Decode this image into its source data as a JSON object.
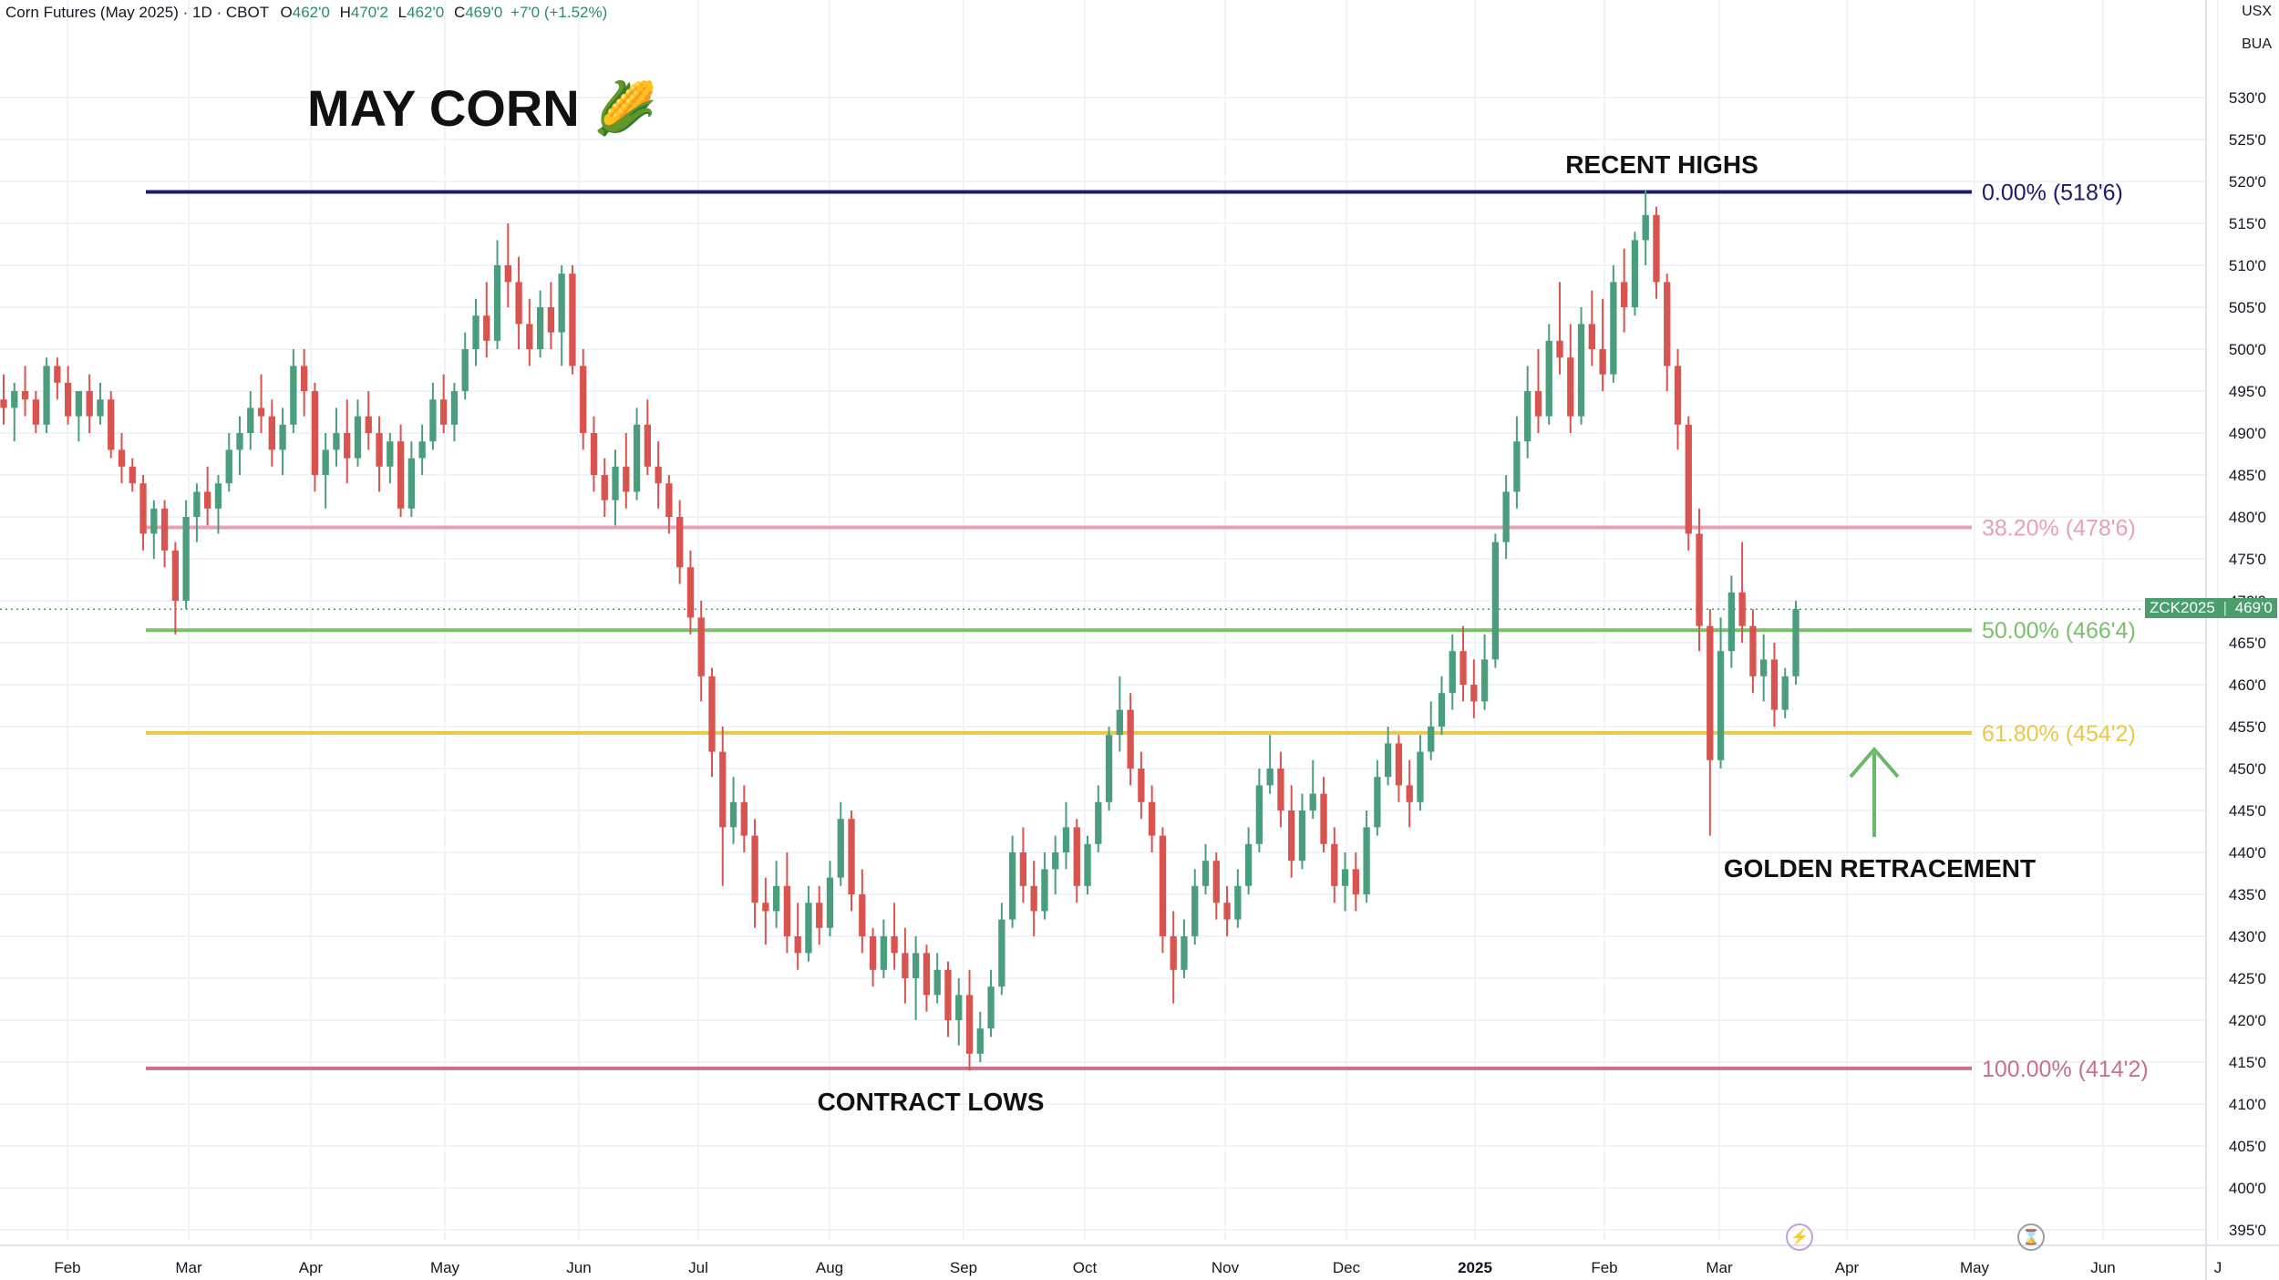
{
  "header": {
    "instrument": "Corn Futures (May 2025) · 1D · CBOT",
    "open_label": "O",
    "open": "462'0",
    "high_label": "H",
    "high": "470'2",
    "low_label": "L",
    "low": "462'0",
    "close_label": "C",
    "close": "469'0",
    "change": "+7'0 (+1.52%)"
  },
  "currency": {
    "line1": "USX",
    "line2": "BUA"
  },
  "price_tag": {
    "symbol": "ZCK2025",
    "value": "469'0"
  },
  "icons": {
    "lightning": "lightning-icon",
    "hourglass": "hourglass-icon"
  },
  "colors": {
    "up": "#4a9e7e",
    "down": "#d9534f",
    "fib_0": "#1f1a6b",
    "fib_382": "#e8a0b4",
    "fib_50": "#7bbf6a",
    "fib_618": "#e8c84a",
    "fib_100": "#c9708c",
    "arrow": "#6ab86a"
  },
  "chart_data": {
    "type": "candlestick",
    "title": "MAY CORN 🌽",
    "ylim": [
      393,
      536
    ],
    "y_ticks": [
      395,
      400,
      405,
      410,
      415,
      420,
      425,
      430,
      435,
      440,
      445,
      450,
      455,
      460,
      465,
      470,
      475,
      480,
      485,
      490,
      495,
      500,
      505,
      510,
      515,
      520,
      525,
      530
    ],
    "y_tick_labels": [
      "395'0",
      "400'0",
      "405'0",
      "410'0",
      "415'0",
      "420'0",
      "425'0",
      "430'0",
      "435'0",
      "440'0",
      "445'0",
      "450'0",
      "455'0",
      "460'0",
      "465'0",
      "470'0",
      "475'0",
      "480'0",
      "485'0",
      "490'0",
      "495'0",
      "500'0",
      "505'0",
      "510'0",
      "515'0",
      "520'0",
      "525'0",
      "530'0"
    ],
    "x_labels": [
      {
        "label": "Feb",
        "bold": false
      },
      {
        "label": "Mar",
        "bold": false
      },
      {
        "label": "Apr",
        "bold": false
      },
      {
        "label": "May",
        "bold": false
      },
      {
        "label": "Jun",
        "bold": false
      },
      {
        "label": "Jul",
        "bold": false
      },
      {
        "label": "Aug",
        "bold": false
      },
      {
        "label": "Sep",
        "bold": false
      },
      {
        "label": "Oct",
        "bold": false
      },
      {
        "label": "Nov",
        "bold": false
      },
      {
        "label": "Dec",
        "bold": false
      },
      {
        "label": "2025",
        "bold": true
      },
      {
        "label": "Feb",
        "bold": false
      },
      {
        "label": "Mar",
        "bold": false
      },
      {
        "label": "Apr",
        "bold": false
      },
      {
        "label": "May",
        "bold": false
      },
      {
        "label": "Jun",
        "bold": false
      },
      {
        "label": "J",
        "bold": false
      }
    ],
    "fib_levels": [
      {
        "level": "0.00%",
        "price": 518.75,
        "label": "0.00% (518'6)"
      },
      {
        "level": "38.20%",
        "price": 478.75,
        "label": "38.20% (478'6)"
      },
      {
        "level": "50.00%",
        "price": 466.5,
        "label": "50.00% (466'4)"
      },
      {
        "level": "61.80%",
        "price": 454.25,
        "label": "61.80% (454'2)"
      },
      {
        "level": "100.00%",
        "price": 414.25,
        "label": "100.00% (414'2)"
      }
    ],
    "annotations": [
      "RECENT HIGHS",
      "CONTRACT LOWS",
      "GOLDEN RETRACEMENT"
    ],
    "last_price": 469.0,
    "candles": [
      [
        494,
        497,
        491,
        493
      ],
      [
        493,
        496,
        489,
        495
      ],
      [
        495,
        498,
        492,
        494
      ],
      [
        494,
        495,
        490,
        491
      ],
      [
        491,
        499,
        490,
        498
      ],
      [
        498,
        499,
        494,
        496
      ],
      [
        496,
        498,
        491,
        492
      ],
      [
        492,
        494,
        489,
        495
      ],
      [
        495,
        497,
        490,
        492
      ],
      [
        492,
        496,
        491,
        494
      ],
      [
        494,
        495,
        487,
        488
      ],
      [
        488,
        490,
        484,
        486
      ],
      [
        486,
        487,
        483,
        484
      ],
      [
        484,
        485,
        476,
        478
      ],
      [
        478,
        482,
        475,
        481
      ],
      [
        481,
        482,
        474,
        476
      ],
      [
        476,
        477,
        466,
        470
      ],
      [
        470,
        482,
        469,
        480
      ],
      [
        480,
        484,
        477,
        483
      ],
      [
        483,
        486,
        479,
        481
      ],
      [
        481,
        485,
        478,
        484
      ],
      [
        484,
        490,
        483,
        488
      ],
      [
        488,
        492,
        485,
        490
      ],
      [
        490,
        495,
        488,
        493
      ],
      [
        493,
        497,
        490,
        492
      ],
      [
        492,
        494,
        486,
        488
      ],
      [
        488,
        493,
        485,
        491
      ],
      [
        491,
        500,
        490,
        498
      ],
      [
        498,
        500,
        492,
        495
      ],
      [
        495,
        496,
        483,
        485
      ],
      [
        485,
        490,
        481,
        488
      ],
      [
        488,
        493,
        486,
        490
      ],
      [
        490,
        494,
        484,
        487
      ],
      [
        487,
        494,
        486,
        492
      ],
      [
        492,
        495,
        488,
        490
      ],
      [
        490,
        492,
        483,
        486
      ],
      [
        486,
        490,
        484,
        489
      ],
      [
        489,
        491,
        480,
        481
      ],
      [
        481,
        489,
        480,
        487
      ],
      [
        487,
        491,
        485,
        489
      ],
      [
        489,
        496,
        488,
        494
      ],
      [
        494,
        497,
        490,
        491
      ],
      [
        491,
        496,
        489,
        495
      ],
      [
        495,
        502,
        494,
        500
      ],
      [
        500,
        506,
        498,
        504
      ],
      [
        504,
        508,
        499,
        501
      ],
      [
        501,
        513,
        500,
        510
      ],
      [
        510,
        515,
        505,
        508
      ],
      [
        508,
        511,
        500,
        503
      ],
      [
        503,
        506,
        498,
        500
      ],
      [
        500,
        507,
        499,
        505
      ],
      [
        505,
        508,
        500,
        502
      ],
      [
        502,
        510,
        498,
        509
      ],
      [
        509,
        510,
        497,
        498
      ],
      [
        498,
        500,
        488,
        490
      ],
      [
        490,
        492,
        483,
        485
      ],
      [
        485,
        487,
        480,
        482
      ],
      [
        482,
        488,
        479,
        486
      ],
      [
        486,
        490,
        481,
        483
      ],
      [
        483,
        493,
        482,
        491
      ],
      [
        491,
        494,
        485,
        486
      ],
      [
        486,
        489,
        481,
        484
      ],
      [
        484,
        485,
        478,
        480
      ],
      [
        480,
        482,
        472,
        474
      ],
      [
        474,
        476,
        466,
        468
      ],
      [
        468,
        470,
        458,
        461
      ],
      [
        461,
        462,
        449,
        452
      ],
      [
        452,
        455,
        436,
        443
      ],
      [
        443,
        449,
        441,
        446
      ],
      [
        446,
        448,
        440,
        442
      ],
      [
        442,
        444,
        431,
        434
      ],
      [
        434,
        437,
        429,
        433
      ],
      [
        433,
        439,
        431,
        436
      ],
      [
        436,
        440,
        428,
        430
      ],
      [
        430,
        434,
        426,
        428
      ],
      [
        428,
        436,
        427,
        434
      ],
      [
        434,
        436,
        429,
        431
      ],
      [
        431,
        439,
        430,
        437
      ],
      [
        437,
        446,
        436,
        444
      ],
      [
        444,
        445,
        433,
        435
      ],
      [
        435,
        438,
        428,
        430
      ],
      [
        430,
        431,
        424,
        426
      ],
      [
        426,
        432,
        425,
        430
      ],
      [
        430,
        434,
        426,
        428
      ],
      [
        428,
        431,
        422,
        425
      ],
      [
        425,
        430,
        420,
        428
      ],
      [
        428,
        429,
        421,
        423
      ],
      [
        423,
        428,
        422,
        426
      ],
      [
        426,
        427,
        418,
        420
      ],
      [
        420,
        425,
        417,
        423
      ],
      [
        423,
        426,
        414,
        416
      ],
      [
        416,
        421,
        415,
        419
      ],
      [
        419,
        426,
        418,
        424
      ],
      [
        424,
        434,
        423,
        432
      ],
      [
        432,
        442,
        431,
        440
      ],
      [
        440,
        443,
        434,
        436
      ],
      [
        436,
        439,
        430,
        433
      ],
      [
        433,
        440,
        432,
        438
      ],
      [
        438,
        442,
        435,
        440
      ],
      [
        440,
        446,
        438,
        443
      ],
      [
        443,
        444,
        434,
        436
      ],
      [
        436,
        442,
        435,
        441
      ],
      [
        441,
        448,
        440,
        446
      ],
      [
        446,
        455,
        445,
        454
      ],
      [
        454,
        461,
        452,
        457
      ],
      [
        457,
        459,
        448,
        450
      ],
      [
        450,
        452,
        444,
        446
      ],
      [
        446,
        448,
        440,
        442
      ],
      [
        442,
        443,
        428,
        430
      ],
      [
        430,
        433,
        422,
        426
      ],
      [
        426,
        432,
        425,
        430
      ],
      [
        430,
        438,
        429,
        436
      ],
      [
        436,
        441,
        435,
        439
      ],
      [
        439,
        440,
        432,
        434
      ],
      [
        434,
        436,
        430,
        432
      ],
      [
        432,
        438,
        431,
        436
      ],
      [
        436,
        443,
        435,
        441
      ],
      [
        441,
        450,
        440,
        448
      ],
      [
        448,
        454,
        447,
        450
      ],
      [
        450,
        452,
        443,
        445
      ],
      [
        445,
        448,
        437,
        439
      ],
      [
        439,
        447,
        438,
        445
      ],
      [
        445,
        451,
        444,
        447
      ],
      [
        447,
        449,
        440,
        441
      ],
      [
        441,
        443,
        434,
        436
      ],
      [
        436,
        440,
        433,
        438
      ],
      [
        438,
        440,
        433,
        435
      ],
      [
        435,
        445,
        434,
        443
      ],
      [
        443,
        451,
        442,
        449
      ],
      [
        449,
        455,
        448,
        453
      ],
      [
        453,
        454,
        446,
        448
      ],
      [
        448,
        451,
        443,
        446
      ],
      [
        446,
        454,
        445,
        452
      ],
      [
        452,
        458,
        451,
        455
      ],
      [
        455,
        461,
        454,
        459
      ],
      [
        459,
        466,
        457,
        464
      ],
      [
        464,
        467,
        458,
        460
      ],
      [
        460,
        463,
        456,
        458
      ],
      [
        458,
        466,
        457,
        463
      ],
      [
        463,
        478,
        462,
        477
      ],
      [
        477,
        485,
        475,
        483
      ],
      [
        483,
        492,
        481,
        489
      ],
      [
        489,
        498,
        487,
        495
      ],
      [
        495,
        500,
        490,
        492
      ],
      [
        492,
        503,
        491,
        501
      ],
      [
        501,
        508,
        497,
        499
      ],
      [
        499,
        503,
        490,
        492
      ],
      [
        492,
        505,
        491,
        503
      ],
      [
        503,
        507,
        498,
        500
      ],
      [
        500,
        506,
        495,
        497
      ],
      [
        497,
        510,
        496,
        508
      ],
      [
        508,
        512,
        502,
        505
      ],
      [
        505,
        514,
        504,
        513
      ],
      [
        513,
        519,
        510,
        516
      ],
      [
        516,
        517,
        506,
        508
      ],
      [
        508,
        509,
        495,
        498
      ],
      [
        498,
        500,
        488,
        491
      ],
      [
        491,
        492,
        476,
        478
      ],
      [
        478,
        481,
        464,
        467
      ],
      [
        467,
        469,
        442,
        451
      ],
      [
        451,
        468,
        450,
        464
      ],
      [
        464,
        473,
        462,
        471
      ],
      [
        471,
        477,
        465,
        467
      ],
      [
        467,
        469,
        459,
        461
      ],
      [
        461,
        466,
        458,
        463
      ],
      [
        463,
        465,
        455,
        457
      ],
      [
        457,
        462,
        456,
        461
      ],
      [
        461,
        470,
        460,
        469
      ]
    ]
  }
}
